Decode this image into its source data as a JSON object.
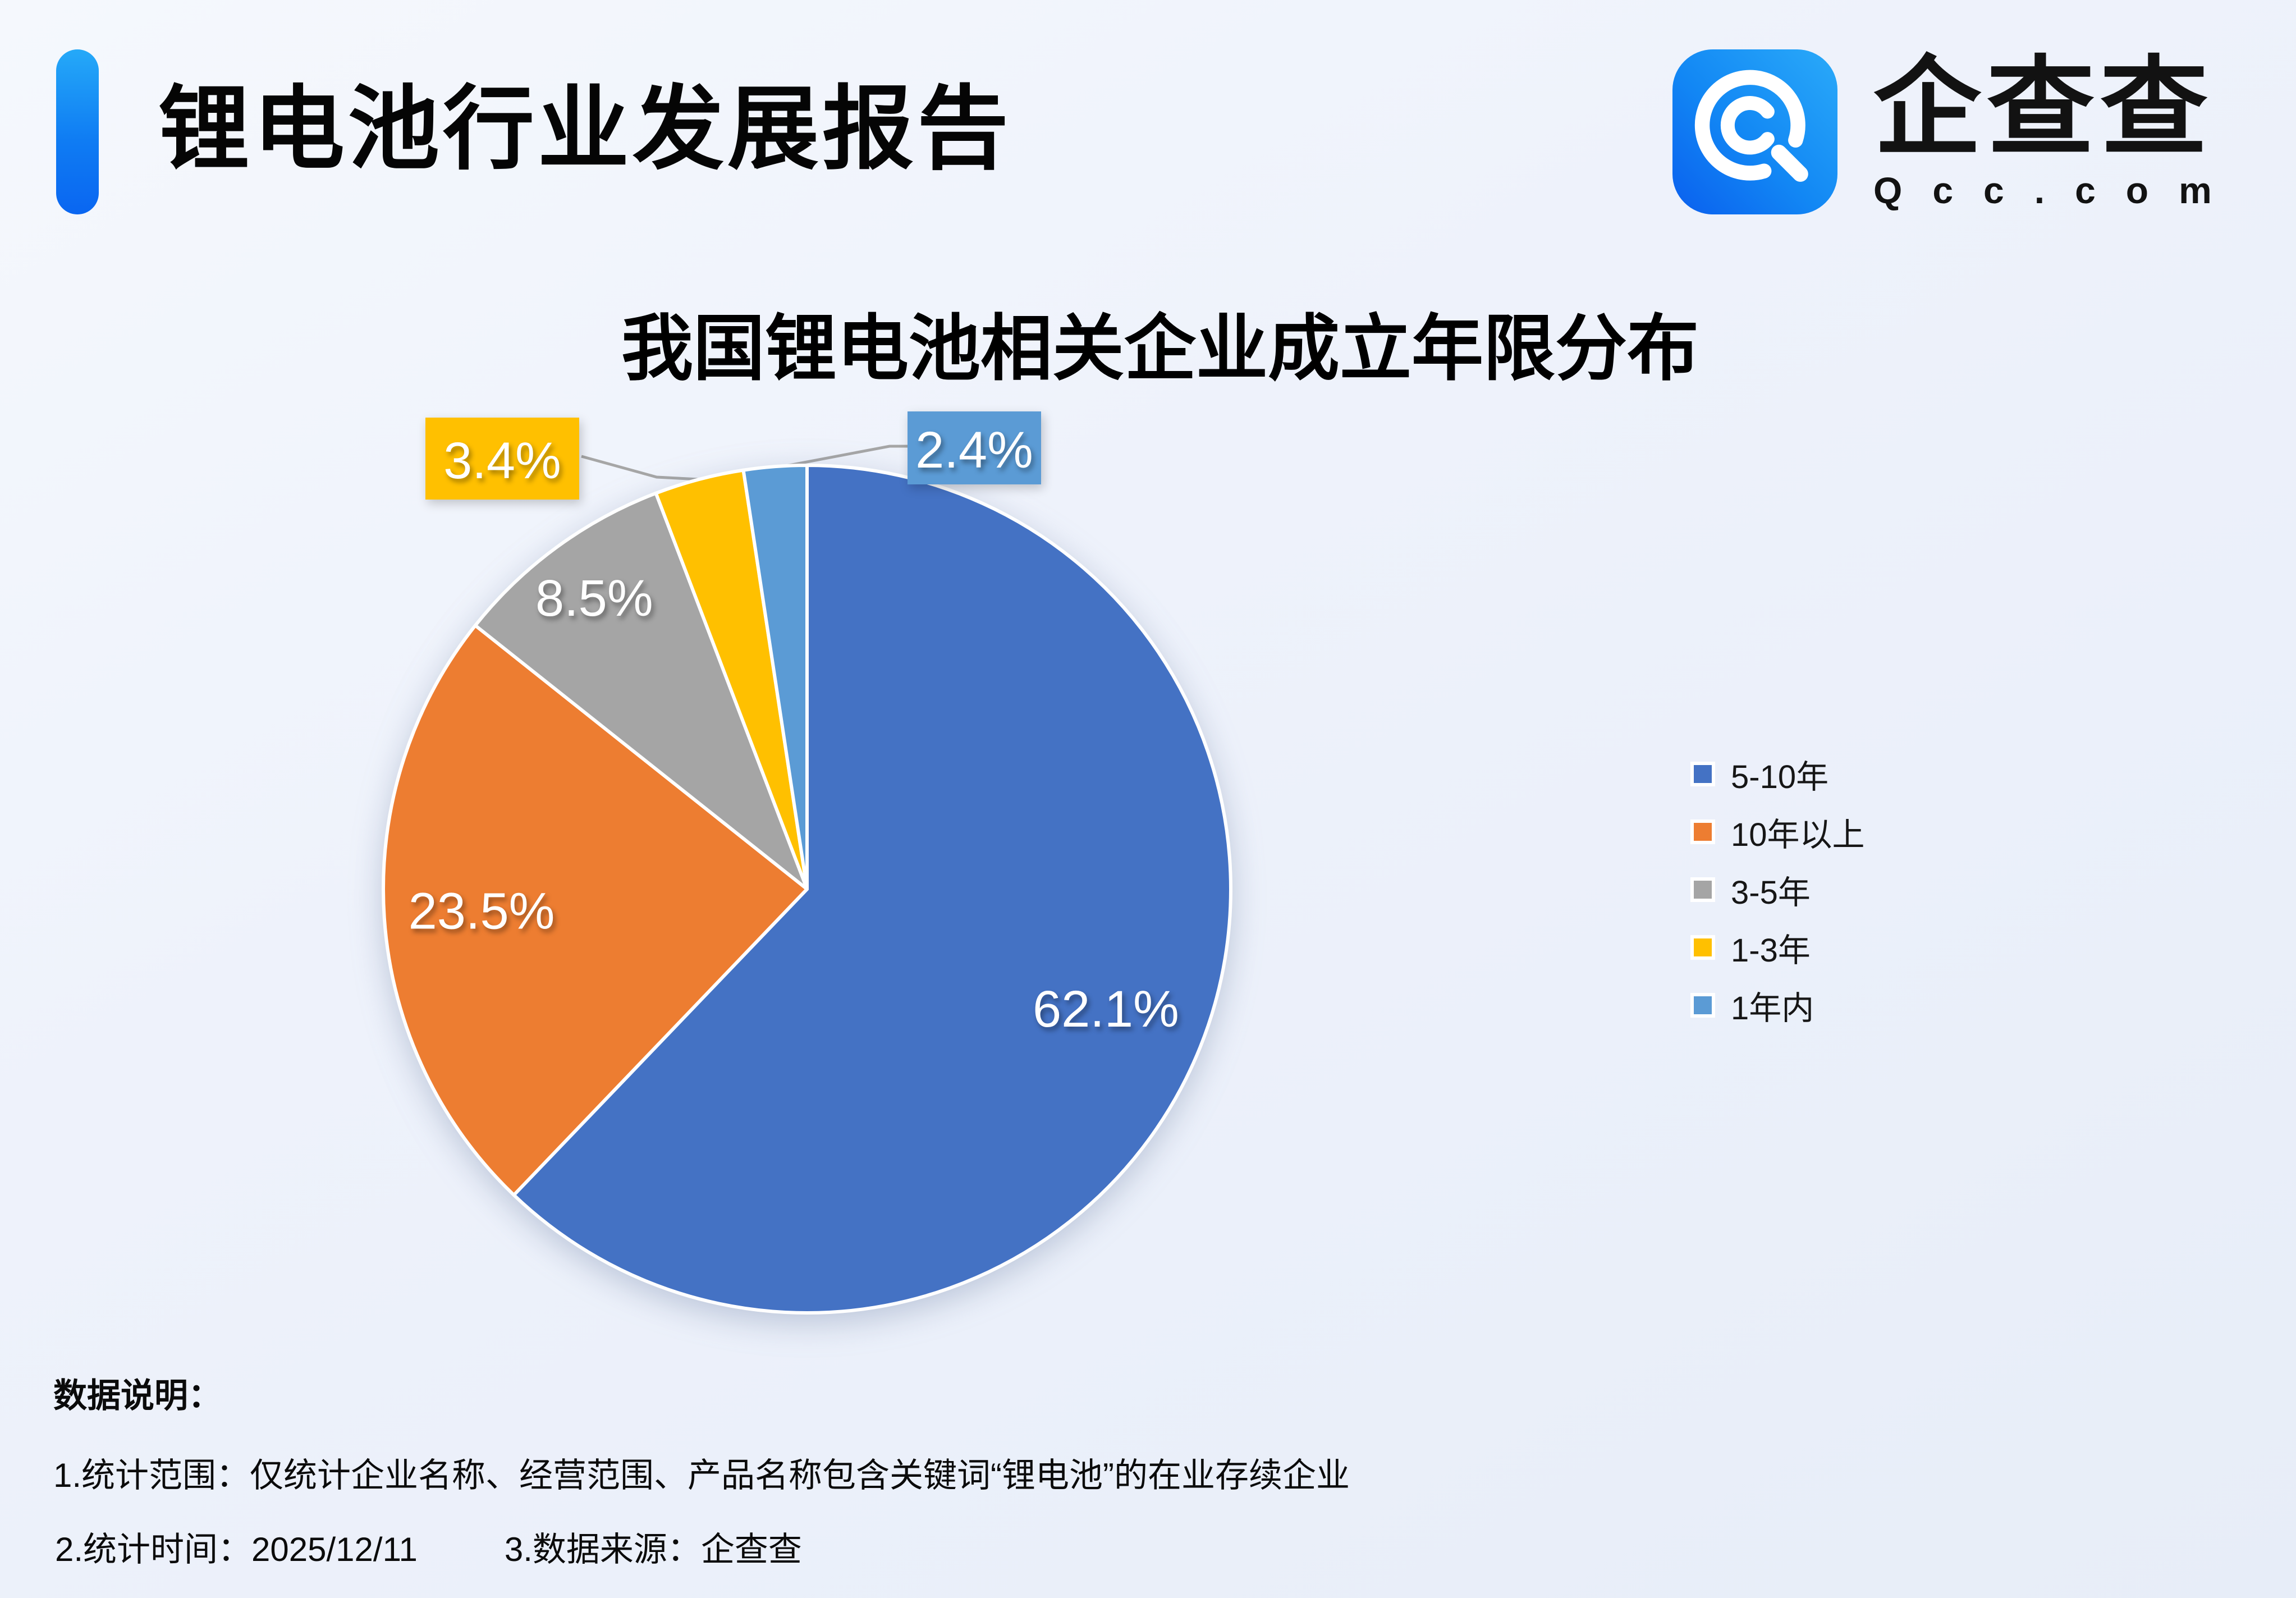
{
  "header": {
    "title": "锂电池行业发展报告"
  },
  "logo": {
    "brand": "企查查",
    "domain": "Qcc.com"
  },
  "chart_data": {
    "type": "pie",
    "title": "我国锂电池相关企业成立年限分布",
    "categories": [
      "5-10年",
      "10年以上",
      "3-5年",
      "1-3年",
      "1年内"
    ],
    "values": [
      62.1,
      23.5,
      8.5,
      3.4,
      2.4
    ],
    "unit": "%",
    "labels": [
      "62.1%",
      "23.5%",
      "8.5%",
      "3.4%",
      "2.4%"
    ],
    "colors": [
      "#4472C4",
      "#ED7D31",
      "#A5A5A5",
      "#FFC000",
      "#5B9BD5"
    ],
    "legend": [
      "5-10年",
      "10年以上",
      "3-5年",
      "1-3年",
      "1年内"
    ],
    "legend_position": "right",
    "start_angle": "12-o-clock",
    "direction": "clockwise",
    "label_style": "small slices use colored callout boxes with gray leader lines"
  },
  "notes": {
    "heading": "数据说明：",
    "scope": "1.统计范围：仅统计企业名称、经营范围、产品名称包含关键词“锂电池”的在业存续企业",
    "time": "2.统计时间：2025/12/11",
    "source": "3.数据来源：企查查"
  },
  "colors": {
    "background": "#EDF1FA",
    "accent_bar": "#0E7BF3",
    "leader_line": "#A6A6A6",
    "text": "#0B0B0B"
  }
}
